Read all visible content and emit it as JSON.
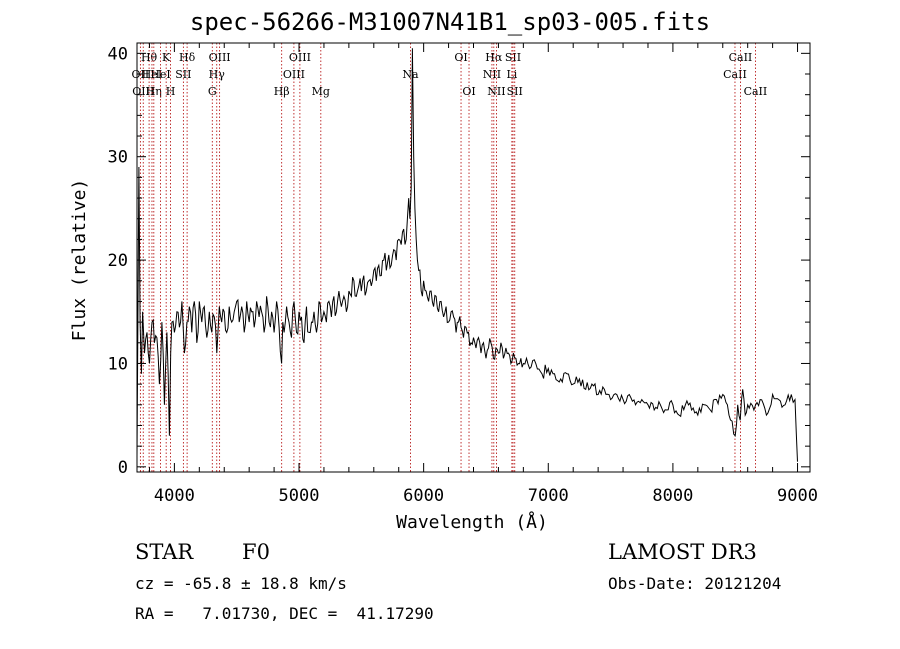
{
  "chart_data": {
    "type": "line",
    "title": "spec-56266-M31007N41B1_sp03-005.fits",
    "xlabel": "Wavelength (Å)",
    "ylabel": "Flux (relative)",
    "xlim": [
      3700,
      9100
    ],
    "ylim": [
      -0.5,
      41
    ],
    "xticks": [
      4000,
      5000,
      6000,
      7000,
      8000,
      9000
    ],
    "yticks": [
      0,
      10,
      20,
      30,
      40
    ],
    "series": [
      {
        "name": "flux",
        "x": [
          3700,
          3715,
          3725,
          3735,
          3745,
          3760,
          3780,
          3800,
          3820,
          3840,
          3860,
          3880,
          3900,
          3920,
          3940,
          3960,
          3970,
          3980,
          4000,
          4020,
          4040,
          4060,
          4080,
          4100,
          4120,
          4140,
          4160,
          4180,
          4200,
          4220,
          4240,
          4260,
          4280,
          4300,
          4320,
          4340,
          4360,
          4380,
          4400,
          4420,
          4440,
          4460,
          4480,
          4500,
          4520,
          4540,
          4560,
          4580,
          4600,
          4620,
          4640,
          4660,
          4680,
          4700,
          4720,
          4740,
          4760,
          4780,
          4800,
          4820,
          4840,
          4860,
          4870,
          4880,
          4900,
          4920,
          4940,
          4960,
          4980,
          5000,
          5020,
          5040,
          5060,
          5080,
          5100,
          5120,
          5140,
          5160,
          5180,
          5200,
          5220,
          5240,
          5260,
          5280,
          5300,
          5320,
          5340,
          5360,
          5380,
          5400,
          5420,
          5440,
          5460,
          5480,
          5500,
          5520,
          5540,
          5560,
          5580,
          5600,
          5620,
          5640,
          5660,
          5680,
          5700,
          5720,
          5740,
          5760,
          5780,
          5800,
          5820,
          5840,
          5860,
          5870,
          5880,
          5890,
          5900,
          5910,
          5920,
          5930,
          5940,
          5950,
          5960,
          5980,
          6000,
          6020,
          6040,
          6060,
          6080,
          6100,
          6120,
          6140,
          6160,
          6180,
          6200,
          6220,
          6240,
          6260,
          6280,
          6300,
          6320,
          6340,
          6360,
          6380,
          6400,
          6420,
          6440,
          6460,
          6480,
          6500,
          6520,
          6540,
          6560,
          6580,
          6600,
          6620,
          6640,
          6660,
          6680,
          6700,
          6720,
          6740,
          6760,
          6780,
          6800,
          6850,
          6900,
          6950,
          7000,
          7050,
          7100,
          7150,
          7200,
          7250,
          7300,
          7350,
          7400,
          7450,
          7500,
          7550,
          7600,
          7650,
          7700,
          7750,
          7800,
          7850,
          7900,
          7950,
          8000,
          8050,
          8100,
          8150,
          8200,
          8250,
          8300,
          8350,
          8400,
          8450,
          8500,
          8520,
          8540,
          8560,
          8580,
          8600,
          8650,
          8700,
          8750,
          8800,
          8850,
          8900,
          8950,
          8980,
          9000
        ],
        "y": [
          1.0,
          29.0,
          14.0,
          9.0,
          15.0,
          11.0,
          13.0,
          10.0,
          14.0,
          12.0,
          12.5,
          8.0,
          14.0,
          6.0,
          13.0,
          3.0,
          11.0,
          14.0,
          13.0,
          15.0,
          13.5,
          16.0,
          11.0,
          14.0,
          15.5,
          13.0,
          16.0,
          12.0,
          16.0,
          14.0,
          15.5,
          12.5,
          15.0,
          13.0,
          14.5,
          11.0,
          15.5,
          14.0,
          15.0,
          13.0,
          15.5,
          14.0,
          15.0,
          16.0,
          14.0,
          15.5,
          13.0,
          16.0,
          14.0,
          15.0,
          13.5,
          16.0,
          14.5,
          15.0,
          13.0,
          16.5,
          14.0,
          15.0,
          13.0,
          16.0,
          13.5,
          10.0,
          14.0,
          13.0,
          15.5,
          14.0,
          12.5,
          16.0,
          13.0,
          15.0,
          14.5,
          12.0,
          15.5,
          13.0,
          14.0,
          15.0,
          13.0,
          16.0,
          14.0,
          15.0,
          14.0,
          16.0,
          14.5,
          16.5,
          15.0,
          17.0,
          15.5,
          16.5,
          15.0,
          17.0,
          16.5,
          18.0,
          16.5,
          17.5,
          17.0,
          18.5,
          17.0,
          18.0,
          17.5,
          19.0,
          18.0,
          19.5,
          18.5,
          20.0,
          19.0,
          20.5,
          19.5,
          21.0,
          20.0,
          22.0,
          21.5,
          23.0,
          22.0,
          24.0,
          26.0,
          24.0,
          27.0,
          40.5,
          30.0,
          25.0,
          22.0,
          20.0,
          19.0,
          17.0,
          18.0,
          17.0,
          16.0,
          17.0,
          15.5,
          16.5,
          15.0,
          16.0,
          14.5,
          15.5,
          14.0,
          15.0,
          14.5,
          13.0,
          14.0,
          13.5,
          12.5,
          13.5,
          13.0,
          12.0,
          12.5,
          11.5,
          12.5,
          11.0,
          12.0,
          10.5,
          11.5,
          12.0,
          10.5,
          11.5,
          11.0,
          12.0,
          10.5,
          11.5,
          11.0,
          10.0,
          11.0,
          10.5,
          10.0,
          10.5,
          10.0,
          9.5,
          10.0,
          9.0,
          9.5,
          9.0,
          8.5,
          9.0,
          8.0,
          8.5,
          7.5,
          8.0,
          7.0,
          7.5,
          6.5,
          7.0,
          6.5,
          7.0,
          6.0,
          6.5,
          6.0,
          5.5,
          6.0,
          5.5,
          6.0,
          5.0,
          6.0,
          5.5,
          5.0,
          6.0,
          5.5,
          6.5,
          7.0,
          5.0,
          3.0,
          6.0,
          4.5,
          7.5,
          5.0,
          6.0,
          5.5,
          6.5,
          5.0,
          7.0,
          6.5,
          6.0,
          7.0,
          6.5,
          0.5
        ]
      }
    ],
    "line_markers": [
      {
        "wave": 3727,
        "label": "OII",
        "row": 1
      },
      {
        "wave": 3750,
        "label": "OIII",
        "row": 2
      },
      {
        "wave": 3797,
        "label": "Hθ",
        "row": 0
      },
      {
        "wave": 3820,
        "label": "HeI",
        "row": 1
      },
      {
        "wave": 3835,
        "label": "Hη",
        "row": 2
      },
      {
        "wave": 3889,
        "label": "HeI",
        "row": 1
      },
      {
        "wave": 3934,
        "label": "K",
        "row": 0
      },
      {
        "wave": 3969,
        "label": "H",
        "row": 2
      },
      {
        "wave": 4072,
        "label": "SII",
        "row": 1
      },
      {
        "wave": 4102,
        "label": "Hδ",
        "row": 0
      },
      {
        "wave": 4304,
        "label": "G",
        "row": 2
      },
      {
        "wave": 4340,
        "label": "Hγ",
        "row": 1
      },
      {
        "wave": 4363,
        "label": "OIII",
        "row": 0
      },
      {
        "wave": 4861,
        "label": "Hβ",
        "row": 2
      },
      {
        "wave": 4959,
        "label": "OIII",
        "row": 1
      },
      {
        "wave": 5007,
        "label": "OIII",
        "row": 0
      },
      {
        "wave": 5175,
        "label": "Mg",
        "row": 2
      },
      {
        "wave": 5894,
        "label": "Na",
        "row": 1
      },
      {
        "wave": 6300,
        "label": "OI",
        "row": 0
      },
      {
        "wave": 6364,
        "label": "OI",
        "row": 2
      },
      {
        "wave": 6548,
        "label": "NII",
        "row": 1
      },
      {
        "wave": 6563,
        "label": "Hα",
        "row": 0
      },
      {
        "wave": 6584,
        "label": "NII",
        "row": 2
      },
      {
        "wave": 6708,
        "label": "Li",
        "row": 1
      },
      {
        "wave": 6717,
        "label": "SII",
        "row": 0
      },
      {
        "wave": 6731,
        "label": "SII",
        "row": 2
      },
      {
        "wave": 8498,
        "label": "CaII",
        "row": 1
      },
      {
        "wave": 8542,
        "label": "CaII",
        "row": 0
      },
      {
        "wave": 8662,
        "label": "CaII",
        "row": 2
      }
    ]
  },
  "info": {
    "object_class": "STAR",
    "subclass": "F0",
    "survey": "LAMOST DR3",
    "redshift": "cz = -65.8 ± 18.8 km/s",
    "obs_date": "Obs-Date: 20121204",
    "coords": "RA =   7.01730, DEC =  41.17290"
  },
  "colors": {
    "marker": "#b00000",
    "line": "#000000",
    "axis": "#000000"
  }
}
